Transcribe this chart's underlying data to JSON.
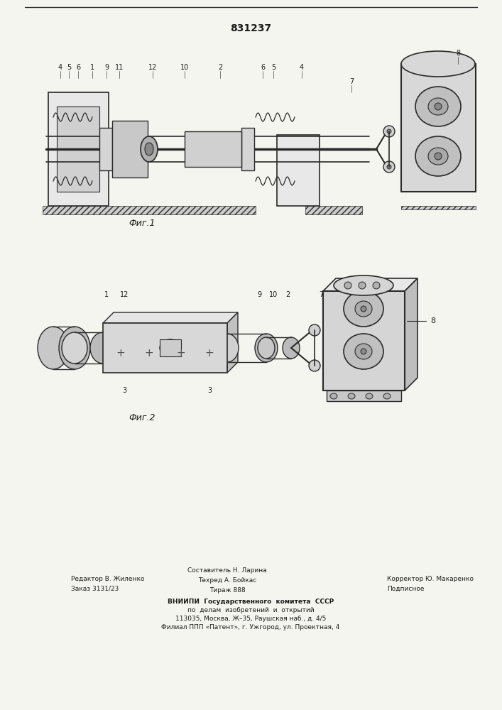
{
  "patent_number": "831237",
  "background_color": "#f5f5f0",
  "line_color": "#2a2a2a",
  "fig1_caption": "Фиг.1",
  "fig2_caption": "Фиг.2",
  "footer_line1_left": "Редактор В. Жиленко",
  "footer_line2_left": "Заказ 3131/23",
  "footer_line1_center": "Составитель Н. Ларина",
  "footer_line2_center": "Техред А. Бойкас",
  "footer_line3_center": "Тираж 888",
  "footer_line1_right": "Корректор Ю. Макаренко",
  "footer_line2_right": "Подписное",
  "footer_vniip1": "ВНИИПИ  Государственного  комитета  СССР",
  "footer_vniip2": "по  делам  изобретений  и  открытий",
  "footer_vniip3": "113035, Москва, Ж–35, Раушская наб., д. 4/5",
  "footer_vniip4": "Филиал ППП «Патент», г. Ужгород, ул. Проектная, 4"
}
